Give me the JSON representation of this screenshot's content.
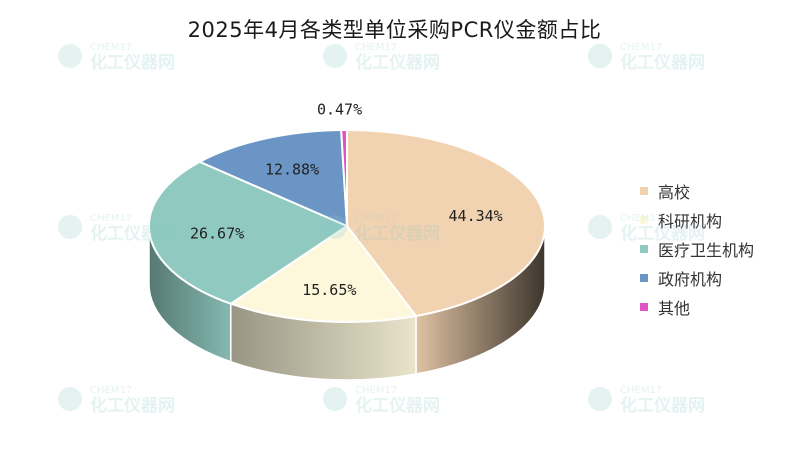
{
  "chart_data": {
    "type": "pie",
    "title": "2025年4月各类型单位采购PCR仪金额占比",
    "categories": [
      "高校",
      "科研机构",
      "医疗卫生机构",
      "政府机构",
      "其他"
    ],
    "values": [
      44.34,
      15.65,
      26.67,
      12.88,
      0.47
    ],
    "labels": [
      "44.34%",
      "15.65%",
      "26.67%",
      "12.88%",
      "0.47%"
    ],
    "colors": [
      "#f2d3b1",
      "#fdf8dc",
      "#8fc9c0",
      "#6a95c4",
      "#e054c4"
    ],
    "legend_position": "right"
  },
  "watermark": {
    "top": "CHEM17",
    "sub": "化工仪器网",
    "color": "#8cc9c7"
  }
}
